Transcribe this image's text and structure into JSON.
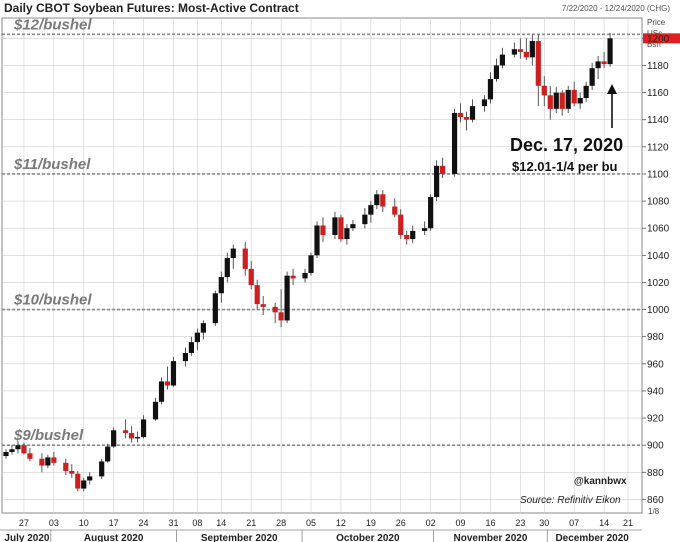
{
  "title": "Daily CBOT Soybean Futures: Most-Active Contract",
  "date_range": "7/22/2020 - 12/24/2020 (CHG)",
  "axis_header": [
    "Price",
    "USc",
    "Bsh"
  ],
  "credits": {
    "handle": "@kannbwx",
    "source": "Source: Refinitiv Eikon"
  },
  "annotation": {
    "date": "Dec. 17, 2020",
    "price": "$12.01-1/4 per bu"
  },
  "page_indicator": "1/8",
  "colors": {
    "up": "#111111",
    "down": "#cc1f1f",
    "level_line": "#8a8a8a",
    "grid": "#cfcfcf",
    "last_price_marker": "#e02020"
  },
  "chart_data": {
    "type": "candlestick",
    "title": "Daily CBOT Soybean Futures: Most-Active Contract",
    "ylabel": "Price USc Bsh",
    "ylim": [
      850,
      1215
    ],
    "yticks": [
      860,
      880,
      900,
      920,
      940,
      960,
      980,
      1000,
      1020,
      1040,
      1060,
      1080,
      1100,
      1120,
      1140,
      1160,
      1180,
      1200
    ],
    "reference_levels": [
      {
        "label": "$12/bushel",
        "value": 1203
      },
      {
        "label": "$11/bushel",
        "value": 1100
      },
      {
        "label": "$10/bushel",
        "value": 1000
      },
      {
        "label": "$9/bushel",
        "value": 900
      }
    ],
    "x_tick_labels": [
      {
        "label": "27",
        "index": 3
      },
      {
        "label": "03",
        "index": 8
      },
      {
        "label": "10",
        "index": 13
      },
      {
        "label": "17",
        "index": 18
      },
      {
        "label": "24",
        "index": 23
      },
      {
        "label": "31",
        "index": 28
      },
      {
        "label": "08",
        "index": 32
      },
      {
        "label": "14",
        "index": 36
      },
      {
        "label": "21",
        "index": 41
      },
      {
        "label": "28",
        "index": 46
      },
      {
        "label": "05",
        "index": 51
      },
      {
        "label": "12",
        "index": 56
      },
      {
        "label": "19",
        "index": 61
      },
      {
        "label": "26",
        "index": 66
      },
      {
        "label": "02",
        "index": 71
      },
      {
        "label": "09",
        "index": 76
      },
      {
        "label": "16",
        "index": 81
      },
      {
        "label": "23",
        "index": 86
      },
      {
        "label": "30",
        "index": 90
      },
      {
        "label": "07",
        "index": 95
      },
      {
        "label": "14",
        "index": 100
      },
      {
        "label": "21",
        "index": 104
      }
    ],
    "months": [
      {
        "label": "July 2020",
        "start": 0,
        "end": 7
      },
      {
        "label": "August 2020",
        "start": 8,
        "end": 28
      },
      {
        "label": "September 2020",
        "start": 29,
        "end": 49
      },
      {
        "label": "October 2020",
        "start": 50,
        "end": 71
      },
      {
        "label": "November 2020",
        "start": 72,
        "end": 90
      },
      {
        "label": "December 2020",
        "start": 91,
        "end": 105
      }
    ],
    "last_price": 1200,
    "ohlc": [
      [
        892,
        897,
        890,
        895
      ],
      [
        895,
        900,
        893,
        897
      ],
      [
        897,
        903,
        894,
        900
      ],
      [
        900,
        902,
        893,
        894
      ],
      [
        894,
        898,
        888,
        890
      ],
      [
        890,
        894,
        880,
        885
      ],
      [
        885,
        893,
        883,
        891
      ],
      [
        891,
        895,
        885,
        887
      ],
      [
        887,
        890,
        878,
        881
      ],
      [
        881,
        886,
        876,
        879
      ],
      [
        879,
        881,
        866,
        868
      ],
      [
        868,
        876,
        866,
        874
      ],
      [
        874,
        880,
        871,
        877
      ],
      [
        877,
        890,
        875,
        888
      ],
      [
        888,
        901,
        887,
        899
      ],
      [
        899,
        913,
        898,
        911
      ],
      [
        911,
        919,
        905,
        909
      ],
      [
        909,
        914,
        902,
        905
      ],
      [
        905,
        910,
        902,
        906
      ],
      [
        906,
        922,
        905,
        919
      ],
      [
        919,
        935,
        918,
        932
      ],
      [
        932,
        950,
        930,
        947
      ],
      [
        947,
        958,
        941,
        944
      ],
      [
        944,
        965,
        943,
        962
      ],
      [
        962,
        972,
        958,
        968
      ],
      [
        968,
        980,
        966,
        976
      ],
      [
        976,
        986,
        970,
        983
      ],
      [
        983,
        992,
        978,
        990
      ],
      [
        990,
        1014,
        988,
        1012
      ],
      [
        1012,
        1028,
        1005,
        1024
      ],
      [
        1024,
        1042,
        1020,
        1038
      ],
      [
        1038,
        1048,
        1030,
        1045
      ],
      [
        1045,
        1050,
        1025,
        1030
      ],
      [
        1030,
        1036,
        1015,
        1018
      ],
      [
        1018,
        1022,
        1000,
        1004
      ],
      [
        1004,
        1010,
        996,
        1002
      ],
      [
        1002,
        1005,
        990,
        998
      ],
      [
        998,
        1015,
        987,
        992
      ],
      [
        992,
        1028,
        990,
        1025
      ],
      [
        1025,
        1030,
        1018,
        1023
      ],
      [
        1023,
        1030,
        1020,
        1027
      ],
      [
        1027,
        1042,
        1025,
        1040
      ],
      [
        1040,
        1065,
        1038,
        1062
      ],
      [
        1062,
        1068,
        1050,
        1055
      ],
      [
        1055,
        1072,
        1052,
        1068
      ],
      [
        1068,
        1070,
        1050,
        1052
      ],
      [
        1052,
        1063,
        1048,
        1060
      ],
      [
        1060,
        1066,
        1058,
        1063
      ],
      [
        1063,
        1075,
        1060,
        1070
      ],
      [
        1070,
        1080,
        1064,
        1077
      ],
      [
        1077,
        1088,
        1074,
        1085
      ],
      [
        1085,
        1088,
        1072,
        1076
      ],
      [
        1076,
        1082,
        1068,
        1070
      ],
      [
        1070,
        1074,
        1052,
        1055
      ],
      [
        1055,
        1058,
        1048,
        1052
      ],
      [
        1052,
        1062,
        1049,
        1058
      ],
      [
        1058,
        1065,
        1055,
        1060
      ],
      [
        1060,
        1085,
        1058,
        1083
      ],
      [
        1083,
        1110,
        1080,
        1106
      ],
      [
        1106,
        1112,
        1097,
        1100
      ],
      [
        1100,
        1148,
        1098,
        1145
      ],
      [
        1145,
        1152,
        1138,
        1142
      ],
      [
        1142,
        1146,
        1132,
        1140
      ],
      [
        1140,
        1155,
        1138,
        1150
      ],
      [
        1150,
        1158,
        1146,
        1155
      ],
      [
        1155,
        1175,
        1152,
        1170
      ],
      [
        1170,
        1185,
        1168,
        1180
      ],
      [
        1180,
        1193,
        1178,
        1188
      ],
      [
        1188,
        1197,
        1186,
        1192
      ],
      [
        1192,
        1200,
        1185,
        1190
      ],
      [
        1190,
        1200,
        1184,
        1186
      ],
      [
        1186,
        1203,
        1180,
        1198
      ],
      [
        1198,
        1203,
        1150,
        1165
      ],
      [
        1165,
        1172,
        1150,
        1158
      ],
      [
        1158,
        1165,
        1140,
        1148
      ],
      [
        1148,
        1164,
        1145,
        1160
      ],
      [
        1160,
        1162,
        1143,
        1148
      ],
      [
        1148,
        1165,
        1145,
        1162
      ],
      [
        1162,
        1168,
        1150,
        1152
      ],
      [
        1152,
        1160,
        1148,
        1156
      ],
      [
        1156,
        1168,
        1153,
        1165
      ],
      [
        1165,
        1182,
        1162,
        1178
      ],
      [
        1178,
        1187,
        1170,
        1183
      ],
      [
        1183,
        1190,
        1178,
        1181
      ],
      [
        1181,
        1204,
        1179,
        1200
      ]
    ],
    "ohlc_x_start": 0,
    "ohlc_x_map": [
      0,
      1,
      2,
      3,
      4,
      6,
      7,
      8,
      10,
      11,
      12,
      13,
      14,
      16,
      17,
      18,
      20,
      21,
      22,
      23,
      25,
      26,
      27,
      28,
      30,
      31,
      32,
      33,
      35,
      36,
      37,
      38,
      40,
      41,
      42,
      43,
      45,
      46,
      47,
      48,
      50,
      51,
      52,
      53,
      55,
      56,
      57,
      58,
      60,
      61,
      62,
      63,
      65,
      66,
      67,
      68,
      70,
      71,
      72,
      73,
      75,
      76,
      77,
      78,
      80,
      81,
      82,
      83,
      85,
      86,
      87,
      88,
      89,
      90,
      91,
      92,
      93,
      94,
      95,
      96,
      97,
      98,
      99,
      100,
      101
    ]
  }
}
